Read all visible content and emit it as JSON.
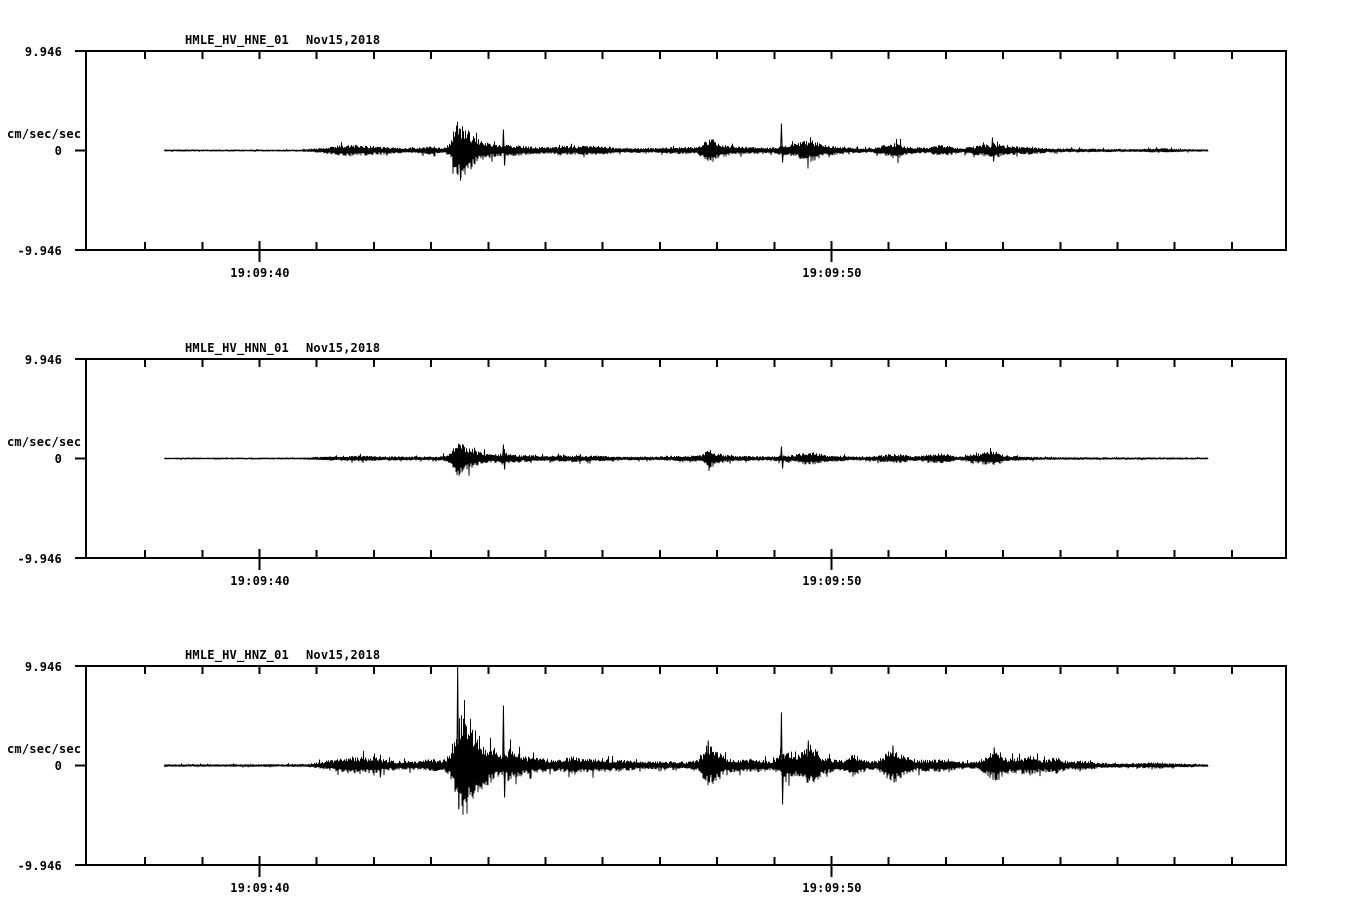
{
  "colors": {
    "background": "#ffffff",
    "ink": "#000000"
  },
  "chart_data": [
    {
      "type": "line",
      "panel": "top",
      "station": "HMLE_HV_HNE_01",
      "date": "Nov15,2018",
      "ylabel": "cm/sec/sec",
      "ylim": [
        -9.946,
        9.946
      ],
      "ytick_labels": [
        "9.946",
        "0",
        "-9.946"
      ],
      "x_ticks": [
        {
          "t": 0,
          "label": "19:09:40"
        },
        {
          "t": 10,
          "label": "19:09:50"
        }
      ],
      "minor_tick_interval_s": 1,
      "t_axis_range": [
        -3.03,
        18.0
      ],
      "grid": false,
      "trace": {
        "t_start": -1.66,
        "t_end": 16.59,
        "seed": 11,
        "envelope": [
          [
            -1.66,
            0.08
          ],
          [
            0.7,
            0.08
          ],
          [
            1.1,
            0.25
          ],
          [
            1.4,
            0.45
          ],
          [
            1.76,
            0.5
          ],
          [
            2.2,
            0.3
          ],
          [
            2.6,
            0.22
          ],
          [
            2.9,
            0.3
          ],
          [
            3.0,
            0.4
          ],
          [
            3.1,
            0.25
          ],
          [
            3.25,
            0.25
          ],
          [
            3.34,
            0.8
          ],
          [
            3.45,
            2.6
          ],
          [
            3.57,
            2.3
          ],
          [
            3.73,
            1.4
          ],
          [
            3.87,
            0.9
          ],
          [
            4.13,
            0.5
          ],
          [
            4.39,
            0.5
          ],
          [
            4.75,
            0.35
          ],
          [
            5.06,
            0.3
          ],
          [
            5.27,
            0.45
          ],
          [
            5.48,
            0.35
          ],
          [
            5.76,
            0.45
          ],
          [
            6.06,
            0.4
          ],
          [
            6.24,
            0.2
          ],
          [
            6.94,
            0.22
          ],
          [
            7.17,
            0.3
          ],
          [
            7.64,
            0.3
          ],
          [
            7.78,
            0.8
          ],
          [
            7.9,
            1.1
          ],
          [
            8.04,
            0.6
          ],
          [
            8.34,
            0.35
          ],
          [
            8.95,
            0.25
          ],
          [
            9.1,
            0.4
          ],
          [
            9.27,
            0.5
          ],
          [
            9.54,
            0.9
          ],
          [
            9.66,
            1.0
          ],
          [
            9.83,
            0.55
          ],
          [
            10.18,
            0.3
          ],
          [
            10.71,
            0.2
          ],
          [
            11.02,
            0.65
          ],
          [
            11.16,
            0.7
          ],
          [
            11.32,
            0.35
          ],
          [
            11.67,
            0.25
          ],
          [
            11.9,
            0.5
          ],
          [
            12.03,
            0.45
          ],
          [
            12.25,
            0.2
          ],
          [
            12.76,
            0.6
          ],
          [
            12.87,
            0.7
          ],
          [
            12.99,
            0.45
          ],
          [
            13.38,
            0.3
          ],
          [
            13.52,
            0.35
          ],
          [
            13.78,
            0.2
          ],
          [
            14.57,
            0.15
          ],
          [
            15.27,
            0.12
          ],
          [
            15.8,
            0.2
          ],
          [
            16.15,
            0.12
          ],
          [
            16.59,
            0.1
          ]
        ],
        "spikes": [
          [
            3.5,
            2.2,
            3.0
          ],
          [
            4.27,
            2.1,
            1.5
          ],
          [
            9.13,
            2.7,
            1.2
          ],
          [
            12.82,
            1.3,
            1.1
          ]
        ]
      }
    },
    {
      "type": "line",
      "panel": "middle",
      "station": "HMLE_HV_HNN_01",
      "date": "Nov15,2018",
      "ylabel": "cm/sec/sec",
      "ylim": [
        -9.946,
        9.946
      ],
      "ytick_labels": [
        "9.946",
        "0",
        "-9.946"
      ],
      "x_ticks": [
        {
          "t": 0,
          "label": "19:09:40"
        },
        {
          "t": 10,
          "label": "19:09:50"
        }
      ],
      "minor_tick_interval_s": 1,
      "t_axis_range": [
        -3.03,
        18.0
      ],
      "grid": false,
      "trace": {
        "t_start": -1.66,
        "t_end": 16.59,
        "seed": 22,
        "envelope": [
          [
            -1.66,
            0.07
          ],
          [
            0.7,
            0.07
          ],
          [
            1.24,
            0.18
          ],
          [
            1.76,
            0.25
          ],
          [
            2.29,
            0.18
          ],
          [
            3.17,
            0.18
          ],
          [
            3.34,
            0.5
          ],
          [
            3.46,
            1.6
          ],
          [
            3.6,
            1.1
          ],
          [
            3.78,
            0.7
          ],
          [
            4.04,
            0.35
          ],
          [
            4.31,
            0.5
          ],
          [
            4.48,
            0.35
          ],
          [
            5.01,
            0.22
          ],
          [
            5.36,
            0.3
          ],
          [
            5.97,
            0.25
          ],
          [
            6.24,
            0.15
          ],
          [
            7.03,
            0.18
          ],
          [
            7.73,
            0.3
          ],
          [
            7.87,
            0.85
          ],
          [
            7.99,
            0.5
          ],
          [
            8.25,
            0.25
          ],
          [
            8.95,
            0.18
          ],
          [
            9.13,
            0.35
          ],
          [
            9.31,
            0.3
          ],
          [
            9.59,
            0.6
          ],
          [
            9.71,
            0.55
          ],
          [
            9.92,
            0.3
          ],
          [
            10.54,
            0.15
          ],
          [
            11.06,
            0.4
          ],
          [
            11.23,
            0.4
          ],
          [
            11.41,
            0.2
          ],
          [
            11.9,
            0.45
          ],
          [
            12.03,
            0.4
          ],
          [
            12.2,
            0.15
          ],
          [
            12.78,
            0.65
          ],
          [
            12.9,
            0.6
          ],
          [
            13.04,
            0.25
          ],
          [
            13.69,
            0.12
          ],
          [
            14.75,
            0.1
          ],
          [
            16.59,
            0.08
          ]
        ],
        "spikes": [
          [
            4.27,
            1.4,
            1.1
          ],
          [
            9.13,
            1.2,
            1.0
          ]
        ]
      }
    },
    {
      "type": "line",
      "panel": "bottom",
      "station": "HMLE_HV_HNZ_01",
      "date": "Nov15,2018",
      "ylabel": "cm/sec/sec",
      "ylim": [
        -9.946,
        9.946
      ],
      "ytick_labels": [
        "9.946",
        "0",
        "-9.946"
      ],
      "x_ticks": [
        {
          "t": 0,
          "label": "19:09:40"
        },
        {
          "t": 10,
          "label": "19:09:50"
        }
      ],
      "minor_tick_interval_s": 1,
      "t_axis_range": [
        -3.03,
        18.0
      ],
      "grid": false,
      "trace": {
        "t_start": -1.66,
        "t_end": 16.59,
        "seed": 33,
        "envelope": [
          [
            -1.66,
            0.1
          ],
          [
            0.8,
            0.12
          ],
          [
            1.03,
            0.3
          ],
          [
            1.32,
            0.55
          ],
          [
            1.62,
            0.8
          ],
          [
            1.9,
            0.75
          ],
          [
            2.1,
            0.6
          ],
          [
            2.38,
            0.4
          ],
          [
            2.82,
            0.4
          ],
          [
            2.99,
            0.6
          ],
          [
            3.22,
            0.4
          ],
          [
            3.34,
            1.2
          ],
          [
            3.43,
            3.0
          ],
          [
            3.52,
            4.5
          ],
          [
            3.66,
            4.3
          ],
          [
            3.8,
            3.0
          ],
          [
            3.94,
            2.0
          ],
          [
            4.08,
            1.3
          ],
          [
            4.22,
            1.0
          ],
          [
            4.36,
            1.5
          ],
          [
            4.48,
            1.1
          ],
          [
            4.66,
            0.8
          ],
          [
            5.01,
            0.6
          ],
          [
            5.24,
            0.5
          ],
          [
            5.5,
            0.85
          ],
          [
            5.62,
            0.6
          ],
          [
            5.97,
            0.65
          ],
          [
            6.15,
            0.5
          ],
          [
            6.36,
            0.5
          ],
          [
            6.67,
            0.35
          ],
          [
            7.11,
            0.35
          ],
          [
            7.46,
            0.35
          ],
          [
            7.69,
            0.6
          ],
          [
            7.83,
            1.9
          ],
          [
            7.97,
            1.5
          ],
          [
            8.17,
            0.7
          ],
          [
            8.43,
            0.5
          ],
          [
            8.69,
            0.6
          ],
          [
            8.95,
            0.4
          ],
          [
            9.08,
            0.8
          ],
          [
            9.22,
            1.6
          ],
          [
            9.39,
            0.9
          ],
          [
            9.53,
            1.5
          ],
          [
            9.66,
            1.9
          ],
          [
            9.8,
            1.0
          ],
          [
            10.01,
            0.55
          ],
          [
            10.27,
            0.45
          ],
          [
            10.39,
            1.1
          ],
          [
            10.53,
            0.5
          ],
          [
            10.8,
            0.4
          ],
          [
            10.99,
            1.3
          ],
          [
            11.11,
            1.6
          ],
          [
            11.27,
            0.8
          ],
          [
            11.5,
            0.5
          ],
          [
            11.76,
            0.55
          ],
          [
            11.94,
            0.6
          ],
          [
            12.11,
            0.4
          ],
          [
            12.55,
            0.3
          ],
          [
            12.78,
            1.2
          ],
          [
            12.9,
            1.4
          ],
          [
            13.08,
            0.6
          ],
          [
            13.34,
            0.8
          ],
          [
            13.48,
            0.9
          ],
          [
            13.66,
            0.5
          ],
          [
            13.96,
            0.75
          ],
          [
            14.13,
            0.35
          ],
          [
            14.48,
            0.45
          ],
          [
            14.66,
            0.25
          ],
          [
            15.18,
            0.18
          ],
          [
            15.71,
            0.3
          ],
          [
            15.97,
            0.18
          ],
          [
            16.59,
            0.12
          ]
        ],
        "spikes": [
          [
            2.1,
            0.6,
            1.2
          ],
          [
            3.47,
            10.0,
            4.4
          ],
          [
            4.27,
            6.0,
            3.2
          ],
          [
            7.85,
            2.5,
            1.7
          ],
          [
            9.13,
            5.3,
            3.9
          ],
          [
            9.6,
            2.5,
            1.5
          ],
          [
            11.08,
            2.0,
            1.7
          ],
          [
            12.85,
            1.8,
            1.5
          ]
        ]
      }
    }
  ]
}
